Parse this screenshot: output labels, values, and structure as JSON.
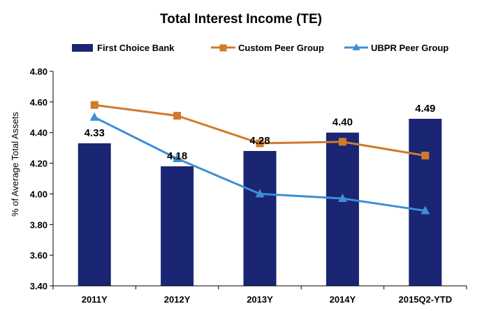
{
  "chart_data": {
    "type": "bar",
    "title": "Total Interest Income (TE)",
    "ylabel": "% of Average Total Assets",
    "xlabel": "",
    "ylim": [
      3.4,
      4.8
    ],
    "ytick_step": 0.2,
    "yticks": [
      "4.80",
      "4.60",
      "4.40",
      "4.20",
      "4.00",
      "3.80",
      "3.60",
      "3.40"
    ],
    "categories": [
      "2011Y",
      "2012Y",
      "2013Y",
      "2014Y",
      "2015Q2-YTD"
    ],
    "grid": false,
    "legend_position": "top",
    "series": [
      {
        "name": "First Choice Bank",
        "kind": "bar",
        "color": "#1a2573",
        "values": [
          4.33,
          4.18,
          4.28,
          4.4,
          4.49
        ],
        "labels": [
          "4.33",
          "4.18",
          "4.28",
          "4.40",
          "4.49"
        ]
      },
      {
        "name": "Custom Peer Group",
        "kind": "line",
        "marker": "square",
        "color": "#d07a2a",
        "values": [
          4.58,
          4.51,
          4.33,
          4.34,
          4.25
        ]
      },
      {
        "name": "UBPR Peer Group",
        "kind": "line",
        "marker": "triangle",
        "color": "#3d8fd6",
        "values": [
          4.5,
          4.23,
          4.0,
          3.97,
          3.89
        ]
      }
    ]
  }
}
